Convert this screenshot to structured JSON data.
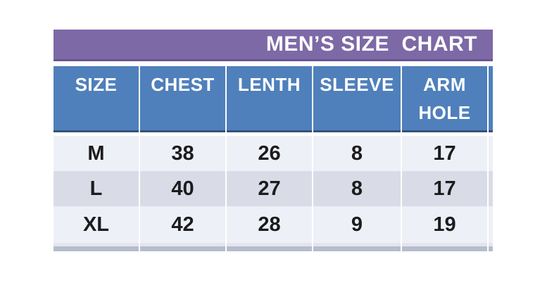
{
  "title_bar": {
    "title": "MEN’S SIZE  CHART"
  },
  "chart_data": {
    "type": "table",
    "title": "MEN’S SIZE CHART",
    "columns": [
      "SIZE",
      "CHEST",
      "LENTH",
      "SLEEVE",
      "ARM HOLE"
    ],
    "rows": [
      [
        "M",
        "38",
        "26",
        "8",
        "17"
      ],
      [
        "L",
        "40",
        "27",
        "8",
        "17"
      ],
      [
        "XL",
        "42",
        "28",
        "9",
        "19"
      ]
    ],
    "notes": "table cropped at right (sliver of 6th column) and bottom (sliver of 4th row)"
  },
  "colors": {
    "title_bar_bg": "#7c69a6",
    "title_bar_border": "#675693",
    "header_bg": "#4f80bb",
    "header_border_bottom": "#35517c",
    "header_text": "#ffffff",
    "row_light_bg": "#eef0f7",
    "row_dark_bg": "#d9dce6",
    "data_text": "#1c1c1e",
    "partial_row_bg": "#e2e5ee",
    "partial_row_edge": "#b6bdcb"
  }
}
